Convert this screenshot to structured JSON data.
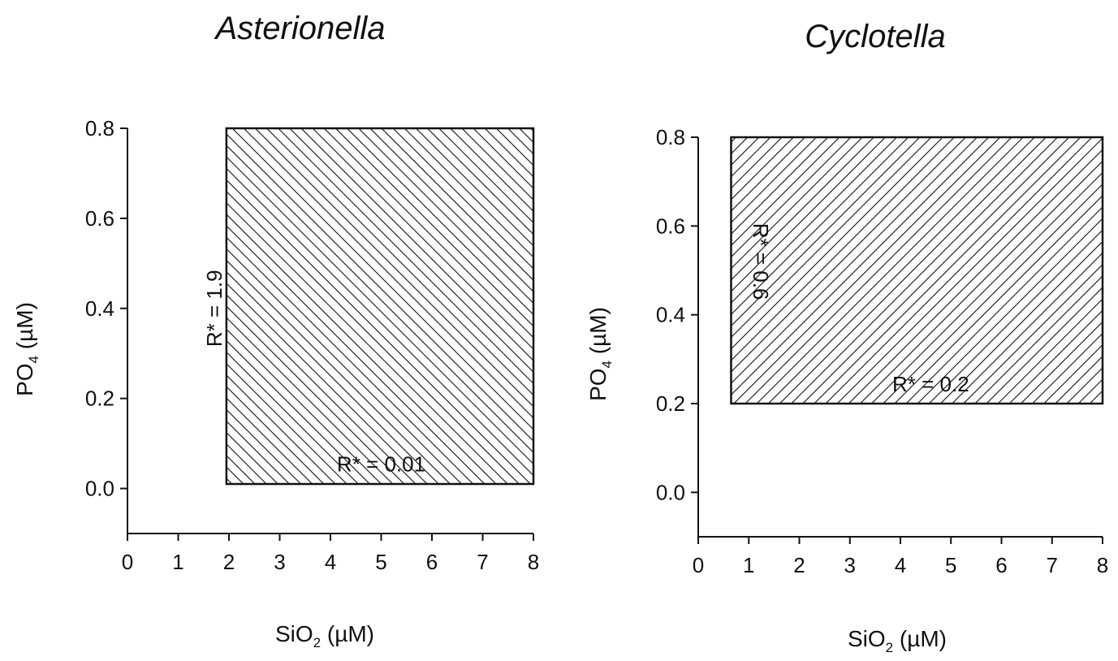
{
  "chart_data": [
    {
      "type": "area",
      "title": "Asterionella",
      "xlabel": {
        "main": "SiO",
        "sub": "2",
        "unit": " (µM)"
      },
      "ylabel": {
        "main": "PO",
        "sub": "4",
        "unit": " (µM)"
      },
      "xlim": [
        0,
        8
      ],
      "ylim": [
        -0.1,
        0.8
      ],
      "xticks": [
        0,
        1,
        2,
        3,
        4,
        5,
        6,
        7,
        8
      ],
      "xtick_labels": [
        "0",
        "1",
        "2",
        "3",
        "4",
        "5",
        "6",
        "7",
        "8"
      ],
      "yticks": [
        0.0,
        0.2,
        0.4,
        0.6,
        0.8
      ],
      "ytick_labels": [
        "0.0",
        "0.2",
        "0.4",
        "0.6",
        "0.8"
      ],
      "hatch": "backslash",
      "region": {
        "x": [
          1.95,
          8.0
        ],
        "y": [
          0.01,
          0.8
        ]
      },
      "annotations": [
        {
          "text": "R* = 1.9",
          "x": 1.75,
          "y": 0.4,
          "rotation": -90
        },
        {
          "text": "R* = 0.01",
          "x": 5.0,
          "y": 0.05,
          "rotation": 0
        }
      ]
    },
    {
      "type": "area",
      "title": "Cyclotella",
      "xlabel": {
        "main": "SiO",
        "sub": "2",
        "unit": " (µM)"
      },
      "ylabel": {
        "main": "PO",
        "sub": "4",
        "unit": " (µM)"
      },
      "xlim": [
        0,
        8
      ],
      "ylim": [
        -0.1,
        0.8
      ],
      "xticks": [
        0,
        1,
        2,
        3,
        4,
        5,
        6,
        7,
        8
      ],
      "xtick_labels": [
        "0",
        "1",
        "2",
        "3",
        "4",
        "5",
        "6",
        "7",
        "8"
      ],
      "yticks": [
        0.0,
        0.2,
        0.4,
        0.6,
        0.8
      ],
      "ytick_labels": [
        "0.0",
        "0.2",
        "0.4",
        "0.6",
        "0.8"
      ],
      "hatch": "slash",
      "region": {
        "x": [
          0.65,
          8.0
        ],
        "y": [
          0.2,
          0.8
        ]
      },
      "annotations": [
        {
          "text": "R* = 0.6",
          "x": 1.2,
          "y": 0.52,
          "rotation": 90
        },
        {
          "text": "R* = 0.2",
          "x": 4.6,
          "y": 0.24,
          "rotation": 0
        }
      ]
    }
  ]
}
